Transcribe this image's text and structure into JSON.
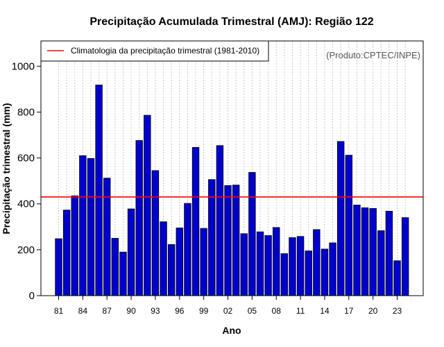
{
  "chart_data": {
    "type": "bar",
    "title": "Precipitação Acumulada Trimestral (AMJ): Região 122",
    "xlabel": "Ano",
    "ylabel": "Precipitação trimestral (mm)",
    "ylim": [
      0,
      1110
    ],
    "yticks": [
      0,
      200,
      400,
      600,
      800,
      1000
    ],
    "grid": "vertical dotted",
    "categories": [
      "81",
      "82",
      "83",
      "84",
      "85",
      "86",
      "87",
      "88",
      "89",
      "90",
      "91",
      "92",
      "93",
      "94",
      "95",
      "96",
      "97",
      "98",
      "99",
      "00",
      "01",
      "02",
      "03",
      "04",
      "05",
      "06",
      "07",
      "08",
      "09",
      "10",
      "11",
      "12",
      "13",
      "14",
      "15",
      "16",
      "17",
      "18",
      "19",
      "20",
      "21",
      "22",
      "23",
      "24"
    ],
    "xtick_labels": [
      "81",
      "84",
      "87",
      "90",
      "93",
      "96",
      "99",
      "02",
      "05",
      "08",
      "11",
      "14",
      "17",
      "20",
      "23"
    ],
    "values": [
      248,
      373,
      435,
      610,
      598,
      918,
      512,
      250,
      190,
      378,
      676,
      786,
      545,
      322,
      223,
      295,
      402,
      646,
      293,
      506,
      654,
      480,
      482,
      270,
      537,
      278,
      262,
      297,
      183,
      253,
      258,
      195,
      288,
      203,
      230,
      672,
      612,
      395,
      383,
      380,
      283,
      368,
      152,
      340
    ],
    "series": [
      {
        "name": "Precipitação trimestral",
        "values": [
          248,
          373,
          435,
          610,
          598,
          918,
          512,
          250,
          190,
          378,
          676,
          786,
          545,
          322,
          223,
          295,
          402,
          646,
          293,
          506,
          654,
          480,
          482,
          270,
          537,
          278,
          262,
          297,
          183,
          253,
          258,
          195,
          288,
          203,
          230,
          672,
          612,
          395,
          383,
          380,
          283,
          368,
          152,
          340
        ]
      }
    ],
    "reference_line": {
      "label": "Climatologia da precipitação trimestral (1981-2010)",
      "value": 430,
      "color": "#ff0000"
    },
    "bar_color": "#0000cd",
    "legend_position": "top-left",
    "annotation": "(Produto:CPTEC/INPE)"
  }
}
